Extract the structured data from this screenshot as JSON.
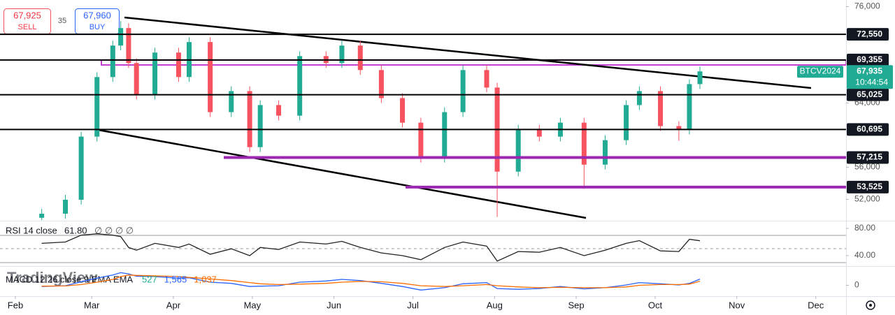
{
  "quote": {
    "sell": "67,925",
    "sell_label": "SELL",
    "spread": "35",
    "buy": "67,960",
    "buy_label": "BUY"
  },
  "watermark": "TradingView",
  "chart_data": [
    {
      "type": "candlestick",
      "symbol": "BTCV2024",
      "x": [
        10,
        19,
        25,
        31,
        37,
        40,
        43,
        46,
        53,
        62,
        66,
        74,
        82,
        89,
        93,
        100,
        108,
        118,
        124,
        131,
        139,
        147,
        154,
        163,
        170,
        179,
        183,
        191,
        199,
        207,
        216,
        224,
        232,
        237,
        245,
        252,
        256,
        260
      ],
      "open": [
        49700,
        50210,
        51950,
        59810,
        67230,
        71150,
        73330,
        68970,
        65040,
        70280,
        67230,
        71590,
        62860,
        65480,
        58500,
        63740,
        62420,
        69840,
        68970,
        71150,
        68100,
        64610,
        61550,
        57190,
        62860,
        68100,
        65920,
        55450,
        60680,
        59810,
        61550,
        56320,
        59370,
        63740,
        65480,
        61120,
        60680,
        66350
      ],
      "high": [
        50810,
        52550,
        60410,
        67830,
        71750,
        74210,
        73930,
        69570,
        70880,
        70880,
        72190,
        72190,
        66080,
        66080,
        64340,
        64340,
        70440,
        70440,
        71750,
        71750,
        68700,
        65210,
        62150,
        63460,
        68700,
        68700,
        66520,
        61280,
        61280,
        62150,
        62150,
        59970,
        64340,
        66080,
        66080,
        61720,
        66950,
        68535
      ],
      "low": [
        49400,
        49610,
        51350,
        59210,
        66630,
        70550,
        68370,
        64440,
        64440,
        66630,
        66630,
        62260,
        62260,
        57900,
        57900,
        61820,
        61820,
        68370,
        68370,
        67500,
        64010,
        60950,
        56590,
        56590,
        62260,
        65320,
        49800,
        54850,
        59210,
        59210,
        53300,
        55720,
        58770,
        63140,
        60520,
        59300,
        60080,
        65750
      ],
      "close": [
        50210,
        51950,
        59810,
        67230,
        71150,
        73330,
        68970,
        65040,
        70280,
        67230,
        71590,
        62860,
        65480,
        58500,
        63740,
        62420,
        69840,
        68970,
        71150,
        68100,
        64610,
        61550,
        57190,
        62860,
        68100,
        65920,
        55450,
        60680,
        59810,
        61550,
        56320,
        59370,
        63740,
        65480,
        61120,
        60680,
        66350,
        67935
      ],
      "up_color": "#22ab94",
      "down_color": "#f7525f",
      "xlim": [
        -5.84,
        315.5
      ],
      "xticks": [
        {
          "value": 0,
          "label": "Feb"
        },
        {
          "value": 29,
          "label": "Mar"
        },
        {
          "value": 60,
          "label": "Apr"
        },
        {
          "value": 90,
          "label": "May"
        },
        {
          "value": 121,
          "label": "Jun"
        },
        {
          "value": 151,
          "label": "Jul"
        },
        {
          "value": 182,
          "label": "Aug"
        },
        {
          "value": 213,
          "label": "Sep"
        },
        {
          "value": 243,
          "label": "Oct"
        },
        {
          "value": 274,
          "label": "Nov"
        },
        {
          "value": 304,
          "label": "Dec"
        }
      ],
      "ylim": [
        49337,
        76826
      ],
      "yticks": [
        {
          "value": 52000,
          "label": "52,000"
        },
        {
          "value": 56000,
          "label": "56,000"
        },
        {
          "value": 64000,
          "label": "64,000"
        },
        {
          "value": 76000,
          "label": "76,000"
        }
      ],
      "levels": [
        {
          "value": 72550,
          "label": "72,550",
          "color": "#000000"
        },
        {
          "value": 69355,
          "label": "69,355",
          "color": "#000000"
        },
        {
          "value": 65025,
          "label": "65,025",
          "color": "#000000"
        },
        {
          "value": 60695,
          "label": "60,695",
          "color": "#000000"
        },
        {
          "value": 57215,
          "label": "57,215",
          "color": "#9c27b0"
        },
        {
          "value": 53525,
          "label": "53,525",
          "color": "#9c27b0"
        }
      ],
      "last": {
        "value": 67935,
        "label": "67,935",
        "time": "10:44:54",
        "color": "#22ab94"
      }
    },
    {
      "type": "line",
      "title": "RSI 14 close",
      "last_label": "61.80",
      "na_marks": "∅ ∅ ∅ ∅",
      "color": "#222222",
      "x": [
        10,
        19,
        25,
        31,
        37,
        40,
        43,
        46,
        53,
        62,
        66,
        74,
        82,
        89,
        93,
        100,
        108,
        118,
        124,
        131,
        139,
        147,
        154,
        163,
        170,
        179,
        183,
        191,
        199,
        207,
        216,
        224,
        232,
        237,
        245,
        252,
        256,
        260
      ],
      "values": [
        58,
        60,
        70,
        72,
        70,
        68,
        52,
        48,
        58,
        52,
        57,
        42,
        50,
        40,
        52,
        49,
        60,
        57,
        61,
        52,
        44,
        40,
        34,
        52,
        60,
        54,
        32,
        46,
        45,
        52,
        40,
        48,
        58,
        62,
        47,
        46,
        64,
        61.8
      ],
      "ylim": [
        24.6,
        89.2
      ],
      "yticks": [
        {
          "value": 40,
          "label": "40.00"
        },
        {
          "value": 80,
          "label": "80.00"
        }
      ]
    },
    {
      "type": "line",
      "title": "MACD 12 26 close 9 EMA EMA",
      "x": [
        10,
        19,
        25,
        31,
        37,
        40,
        43,
        46,
        53,
        62,
        66,
        74,
        82,
        89,
        93,
        100,
        108,
        118,
        124,
        131,
        139,
        147,
        154,
        163,
        170,
        179,
        183,
        191,
        199,
        207,
        216,
        224,
        232,
        237,
        245,
        252,
        256,
        260
      ],
      "series": [
        {
          "color": "#2962ff",
          "values": [
            -300,
            -100,
            900,
            1800,
            2600,
            3200,
            2900,
            2300,
            2200,
            1800,
            1900,
            800,
            500,
            -300,
            -200,
            -100,
            800,
            1100,
            1500,
            1200,
            500,
            -300,
            -1200,
            -600,
            400,
            700,
            -800,
            -1000,
            -800,
            -300,
            -900,
            -600,
            100,
            700,
            400,
            100,
            500,
            1565
          ]
        },
        {
          "color": "#ff6d00",
          "values": [
            -200,
            -150,
            200,
            800,
            1500,
            2200,
            2600,
            2500,
            2400,
            2200,
            2000,
            1600,
            1200,
            700,
            400,
            200,
            300,
            500,
            800,
            1000,
            900,
            500,
            -100,
            -300,
            -100,
            200,
            -100,
            -400,
            -600,
            -500,
            -600,
            -600,
            -400,
            0,
            200,
            200,
            300,
            1037
          ]
        }
      ],
      "readouts": [
        {
          "value": 527,
          "label": "527",
          "color": "#22ab94"
        },
        {
          "value": 1565,
          "label": "1,565",
          "color": "#2962ff"
        },
        {
          "value": 1037,
          "label": "1,037",
          "color": "#ff6d00"
        }
      ],
      "ylim": [
        -2200,
        4500
      ],
      "yticks": [
        0
      ]
    }
  ]
}
